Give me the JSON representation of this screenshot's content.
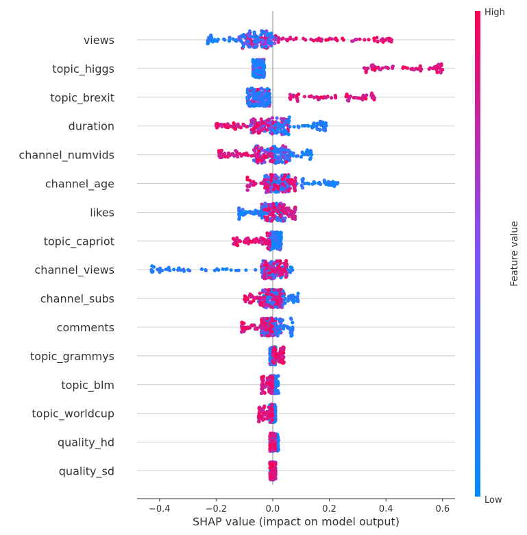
{
  "chart_data": {
    "type": "scatter",
    "subtype": "shap-beeswarm",
    "title": "",
    "xlabel": "SHAP value (impact on model output)",
    "xlim": [
      -0.48,
      0.65
    ],
    "xticks": [
      -0.4,
      -0.2,
      0.0,
      0.2,
      0.4,
      0.6
    ],
    "xtick_labels": [
      "−0.4",
      "−0.2",
      "0.0",
      "0.2",
      "0.4",
      "0.6"
    ],
    "colorbar": {
      "label": "Feature value",
      "high_label": "High",
      "low_label": "Low",
      "low_color": "#008bfb",
      "mid_color": "#7c52ff",
      "high_color": "#ff0052"
    },
    "features": [
      {
        "name": "views",
        "min": -0.23,
        "max": 0.42,
        "low_range": [
          -0.23,
          0.0
        ],
        "high_range": [
          0.02,
          0.42
        ],
        "core": [
          -0.12,
          0.02
        ]
      },
      {
        "name": "topic_higgs",
        "min": -0.07,
        "max": 0.6,
        "low_range": [
          -0.07,
          -0.03
        ],
        "high_range": [
          0.32,
          0.6
        ],
        "core": [
          -0.07,
          -0.03
        ]
      },
      {
        "name": "topic_brexit",
        "min": -0.09,
        "max": 0.36,
        "low_range": [
          -0.09,
          -0.01
        ],
        "high_range": [
          0.06,
          0.36
        ],
        "core": [
          -0.09,
          -0.01
        ]
      },
      {
        "name": "duration",
        "min": -0.2,
        "max": 0.19,
        "low_range": [
          0.0,
          0.19
        ],
        "high_range": [
          -0.2,
          0.0
        ],
        "core": [
          -0.08,
          0.06
        ]
      },
      {
        "name": "channel_numvids",
        "min": -0.19,
        "max": 0.14,
        "low_range": [
          0.0,
          0.14
        ],
        "high_range": [
          -0.19,
          0.0
        ],
        "core": [
          -0.07,
          0.06
        ]
      },
      {
        "name": "channel_age",
        "min": -0.09,
        "max": 0.23,
        "low_range": [
          0.0,
          0.23
        ],
        "high_range": [
          -0.09,
          0.08
        ],
        "core": [
          -0.03,
          0.06
        ]
      },
      {
        "name": "likes",
        "min": -0.12,
        "max": 0.08,
        "low_range": [
          -0.12,
          0.03
        ],
        "high_range": [
          -0.02,
          0.08
        ],
        "core": [
          -0.04,
          0.05
        ]
      },
      {
        "name": "topic_capriot",
        "min": -0.14,
        "max": 0.03,
        "low_range": [
          -0.01,
          0.03
        ],
        "high_range": [
          -0.14,
          -0.01
        ],
        "core": [
          -0.01,
          0.03
        ]
      },
      {
        "name": "channel_views",
        "min": -0.43,
        "max": 0.07,
        "low_range": [
          -0.43,
          0.07
        ],
        "high_range": [
          -0.03,
          0.05
        ],
        "core": [
          -0.04,
          0.04
        ]
      },
      {
        "name": "channel_subs",
        "min": -0.1,
        "max": 0.09,
        "low_range": [
          -0.02,
          0.09
        ],
        "high_range": [
          -0.1,
          0.03
        ],
        "core": [
          -0.05,
          0.04
        ]
      },
      {
        "name": "comments",
        "min": -0.11,
        "max": 0.07,
        "low_range": [
          -0.02,
          0.07
        ],
        "high_range": [
          -0.11,
          0.0
        ],
        "core": [
          -0.04,
          0.03
        ]
      },
      {
        "name": "topic_grammys",
        "min": -0.03,
        "max": 0.04,
        "low_range": [
          -0.01,
          0.01
        ],
        "high_range": [
          0.0,
          0.04
        ],
        "core": [
          -0.01,
          0.01
        ]
      },
      {
        "name": "topic_blm",
        "min": -0.04,
        "max": 0.02,
        "low_range": [
          -0.01,
          0.02
        ],
        "high_range": [
          -0.04,
          0.0
        ],
        "core": [
          -0.01,
          0.01
        ]
      },
      {
        "name": "topic_worldcup",
        "min": -0.05,
        "max": 0.01,
        "low_range": [
          -0.01,
          0.01
        ],
        "high_range": [
          -0.05,
          0.0
        ],
        "core": [
          -0.01,
          0.01
        ]
      },
      {
        "name": "quality_hd",
        "min": -0.02,
        "max": 0.02,
        "low_range": [
          0.0,
          0.02
        ],
        "high_range": [
          -0.01,
          0.01
        ],
        "core": [
          -0.01,
          0.01
        ]
      },
      {
        "name": "quality_sd",
        "min": -0.01,
        "max": 0.01,
        "low_range": [
          -0.01,
          0.01
        ],
        "high_range": [
          -0.01,
          0.01
        ],
        "core": [
          -0.005,
          0.005
        ]
      }
    ]
  }
}
